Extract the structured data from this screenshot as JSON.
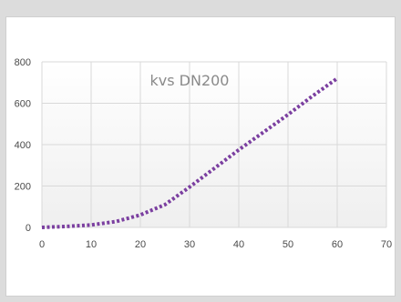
{
  "chart_data": {
    "type": "line",
    "title": "kvs DN200",
    "xlabel": "",
    "ylabel": "",
    "xlim": [
      0,
      70
    ],
    "ylim": [
      0,
      800
    ],
    "x_ticks": [
      0,
      10,
      20,
      30,
      40,
      50,
      60,
      70
    ],
    "y_ticks": [
      0,
      200,
      400,
      600,
      800
    ],
    "grid": true,
    "legend": "none",
    "series": [
      {
        "color": "#7b3fa0",
        "line_style": "dotted",
        "x": [
          0,
          5,
          10,
          15,
          20,
          25,
          30,
          35,
          40,
          45,
          50,
          55,
          60
        ],
        "y": [
          0,
          5,
          12,
          28,
          60,
          110,
          195,
          285,
          375,
          460,
          545,
          635,
          720
        ]
      }
    ]
  }
}
